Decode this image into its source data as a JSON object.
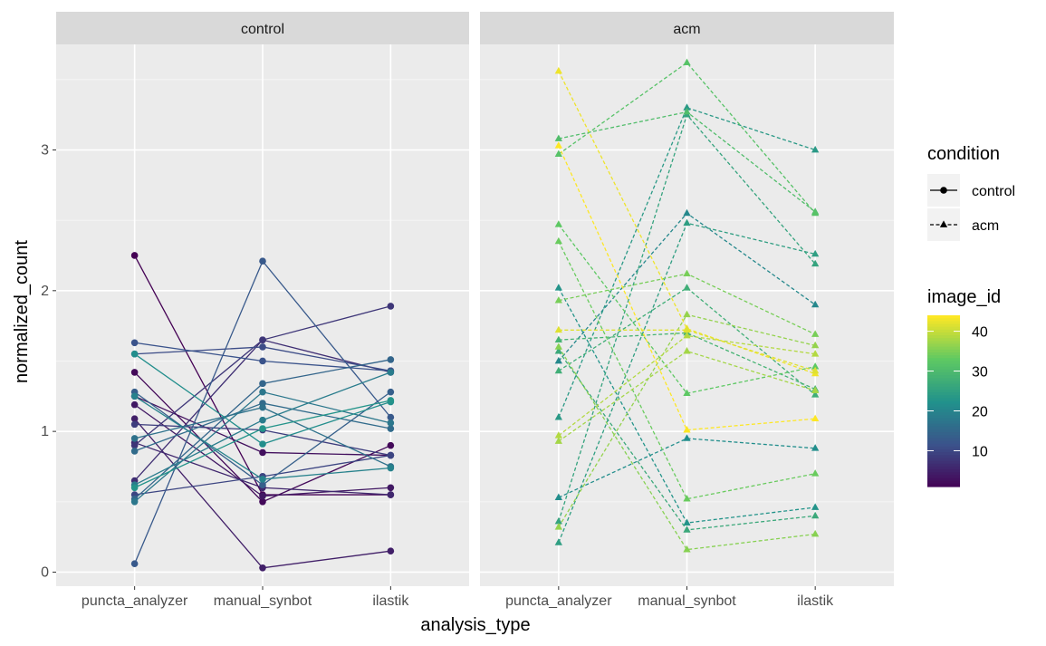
{
  "chart_data": {
    "type": "line",
    "xlabel": "analysis_type",
    "ylabel": "normalized_count",
    "categories": [
      "puncta_analyzer",
      "manual_synbot",
      "ilastik"
    ],
    "ylim": [
      -0.1,
      3.75
    ],
    "yticks": [
      0,
      1,
      2,
      3
    ],
    "grid": true,
    "legend_placement": "right",
    "legend": {
      "condition_title": "condition",
      "condition_entries": [
        {
          "label": "control",
          "shape": "circle",
          "linetype": "solid"
        },
        {
          "label": "acm",
          "shape": "triangle",
          "linetype": "dashed"
        }
      ],
      "colorbar_title": "image_id",
      "colorbar_labels": [
        "40",
        "30",
        "20",
        "10"
      ],
      "colorbar_values": [
        40,
        30,
        20,
        10
      ],
      "colorbar_range": [
        1,
        44
      ]
    },
    "panels": [
      {
        "strip": "control",
        "condition": "control",
        "series": [
          {
            "image_id": 1,
            "values": [
              2.25,
              0.55,
              0.55
            ]
          },
          {
            "image_id": 2,
            "values": [
              1.42,
              0.5,
              0.9
            ]
          },
          {
            "image_id": 3,
            "values": [
              1.25,
              0.85,
              0.83
            ]
          },
          {
            "image_id": 4,
            "values": [
              1.19,
              0.54,
              0.6
            ]
          },
          {
            "image_id": 5,
            "values": [
              1.09,
              0.03,
              0.15
            ]
          },
          {
            "image_id": 6,
            "values": [
              0.92,
              0.6,
              0.55
            ]
          },
          {
            "image_id": 7,
            "values": [
              0.65,
              1.65,
              1.42
            ]
          },
          {
            "image_id": 8,
            "values": [
              0.9,
              1.65,
              1.89
            ]
          },
          {
            "image_id": 9,
            "values": [
              1.05,
              1.01,
              0.83
            ]
          },
          {
            "image_id": 10,
            "values": [
              0.55,
              0.68,
              0.83
            ]
          },
          {
            "image_id": 11,
            "values": [
              1.55,
              1.6,
              1.43
            ]
          },
          {
            "image_id": 12,
            "values": [
              1.63,
              1.5,
              1.43
            ]
          },
          {
            "image_id": 13,
            "values": [
              0.06,
              2.21,
              1.1
            ]
          },
          {
            "image_id": 14,
            "values": [
              1.28,
              0.62,
              1.28
            ]
          },
          {
            "image_id": 15,
            "values": [
              0.52,
              1.34,
              1.51
            ]
          },
          {
            "image_id": 16,
            "values": [
              0.86,
              1.2,
              1.02
            ]
          },
          {
            "image_id": 17,
            "values": [
              0.95,
              1.17,
              0.75
            ]
          },
          {
            "image_id": 18,
            "values": [
              0.5,
              1.28,
              1.06
            ]
          },
          {
            "image_id": 19,
            "values": [
              0.62,
              1.08,
              1.42
            ]
          },
          {
            "image_id": 20,
            "values": [
              1.25,
              0.66,
              0.74
            ]
          },
          {
            "image_id": 22,
            "values": [
              1.55,
              0.91,
              1.21
            ]
          },
          {
            "image_id": 23,
            "values": [
              0.6,
              1.02,
              1.22
            ]
          }
        ]
      },
      {
        "strip": "acm",
        "condition": "acm",
        "series": [
          {
            "image_id": 21,
            "values": [
              1.5,
              2.55,
              1.9
            ]
          },
          {
            "image_id": 22,
            "values": [
              0.53,
              0.95,
              0.88
            ]
          },
          {
            "image_id": 23,
            "values": [
              2.02,
              0.35,
              0.46
            ]
          },
          {
            "image_id": 24,
            "values": [
              1.1,
              3.3,
              3.0
            ]
          },
          {
            "image_id": 25,
            "values": [
              0.21,
              2.48,
              2.26
            ]
          },
          {
            "image_id": 26,
            "values": [
              0.36,
              3.25,
              2.19
            ]
          },
          {
            "image_id": 27,
            "values": [
              1.57,
              0.3,
              0.4
            ]
          },
          {
            "image_id": 28,
            "values": [
              1.43,
              2.02,
              1.26
            ]
          },
          {
            "image_id": 29,
            "values": [
              1.65,
              1.7,
              1.3
            ]
          },
          {
            "image_id": 31,
            "values": [
              3.08,
              3.27,
              2.56
            ]
          },
          {
            "image_id": 32,
            "values": [
              2.97,
              3.62,
              2.55
            ]
          },
          {
            "image_id": 33,
            "values": [
              2.47,
              1.27,
              1.46
            ]
          },
          {
            "image_id": 34,
            "values": [
              2.35,
              0.52,
              0.7
            ]
          },
          {
            "image_id": 35,
            "values": [
              1.93,
              2.12,
              1.69
            ]
          },
          {
            "image_id": 36,
            "values": [
              1.6,
              0.16,
              0.27
            ]
          },
          {
            "image_id": 37,
            "values": [
              0.32,
              1.83,
              1.61
            ]
          },
          {
            "image_id": 38,
            "values": [
              0.93,
              1.57,
              1.29
            ]
          },
          {
            "image_id": 39,
            "values": [
              0.97,
              1.68,
              1.55
            ]
          },
          {
            "image_id": 43,
            "values": [
              3.56,
              1.73,
              1.41
            ]
          },
          {
            "image_id": 44,
            "values": [
              3.03,
              1.01,
              1.09
            ]
          },
          {
            "image_id": 42,
            "values": [
              1.72,
              1.72,
              1.43
            ]
          }
        ]
      }
    ]
  }
}
